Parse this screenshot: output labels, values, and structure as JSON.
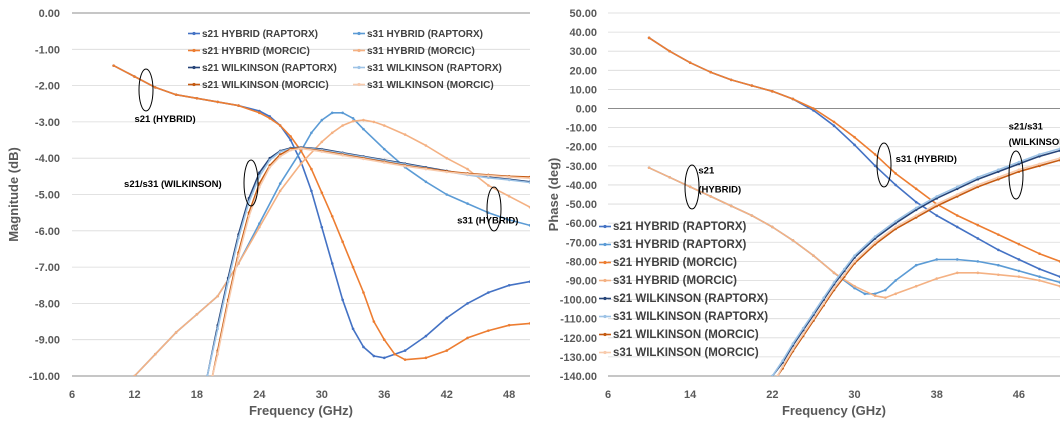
{
  "chart_data": [
    {
      "type": "line",
      "title": "",
      "xlabel": "Frequency (GHz)",
      "ylabel": "Magnitude (dB)",
      "xlim": [
        6,
        50
      ],
      "ylim": [
        -10,
        0
      ],
      "xticks": [
        6,
        12,
        18,
        24,
        30,
        36,
        42,
        48
      ],
      "yticks": [
        "0.00",
        "-1.00",
        "-2.00",
        "-3.00",
        "-4.00",
        "-5.00",
        "-6.00",
        "-7.00",
        "-8.00",
        "-9.00",
        "-10.00"
      ],
      "grid": "horizontal",
      "legend_position": "top-right",
      "series": [
        {
          "name": "s21 HYBRID (RAPTORX)",
          "color": "#4472C4",
          "x": [
            10,
            12,
            14,
            16,
            18,
            20,
            22,
            24,
            25,
            26,
            27,
            28,
            29,
            30,
            31,
            32,
            33,
            34,
            35,
            36,
            38,
            40,
            42,
            44,
            46,
            48,
            50
          ],
          "y": [
            -1.45,
            -1.75,
            -2.05,
            -2.25,
            -2.35,
            -2.45,
            -2.55,
            -2.7,
            -2.85,
            -3.1,
            -3.5,
            -4.1,
            -4.9,
            -5.9,
            -6.9,
            -7.9,
            -8.7,
            -9.2,
            -9.45,
            -9.5,
            -9.3,
            -8.9,
            -8.4,
            -8.0,
            -7.7,
            -7.5,
            -7.4
          ]
        },
        {
          "name": "s31 HYBRID (RAPTORX)",
          "color": "#5B9BD5",
          "x": [
            12,
            14,
            16,
            18,
            20,
            22,
            24,
            26,
            28,
            29,
            30,
            31,
            32,
            33,
            34,
            36,
            38,
            40,
            42,
            44,
            46,
            48,
            50
          ],
          "y": [
            -10.0,
            -9.4,
            -8.8,
            -8.3,
            -7.8,
            -6.9,
            -5.8,
            -4.7,
            -3.8,
            -3.3,
            -2.95,
            -2.75,
            -2.75,
            -2.9,
            -3.2,
            -3.75,
            -4.25,
            -4.65,
            -5.0,
            -5.25,
            -5.5,
            -5.7,
            -5.85
          ]
        },
        {
          "name": "s21 HYBRID (MORCIC)",
          "color": "#ED7D31",
          "x": [
            10,
            12,
            14,
            16,
            18,
            20,
            22,
            24,
            25,
            26,
            27,
            28,
            29,
            30,
            31,
            32,
            33,
            34,
            35,
            36,
            37,
            38,
            40,
            42,
            44,
            46,
            48,
            50
          ],
          "y": [
            -1.45,
            -1.75,
            -2.05,
            -2.25,
            -2.35,
            -2.45,
            -2.55,
            -2.75,
            -2.9,
            -3.1,
            -3.4,
            -3.8,
            -4.3,
            -4.95,
            -5.6,
            -6.3,
            -7.0,
            -7.7,
            -8.5,
            -9.0,
            -9.4,
            -9.55,
            -9.5,
            -9.3,
            -8.95,
            -8.75,
            -8.6,
            -8.55
          ]
        },
        {
          "name": "s31 HYBRID (MORCIC)",
          "color": "#F4B183",
          "x": [
            12,
            14,
            16,
            18,
            20,
            22,
            24,
            26,
            28,
            30,
            31,
            32,
            33,
            34,
            35,
            36,
            38,
            40,
            42,
            44,
            46,
            48,
            50
          ],
          "y": [
            -10.0,
            -9.4,
            -8.8,
            -8.3,
            -7.8,
            -6.9,
            -5.9,
            -4.9,
            -4.15,
            -3.55,
            -3.3,
            -3.1,
            -2.98,
            -2.95,
            -3.0,
            -3.1,
            -3.35,
            -3.65,
            -4.0,
            -4.3,
            -4.75,
            -5.05,
            -5.35
          ]
        },
        {
          "name": "s21 WILKINSON (RAPTORX)",
          "color": "#264478",
          "x": [
            19,
            20,
            21,
            22,
            23,
            24,
            25,
            26,
            27,
            28,
            30,
            32,
            34,
            36,
            38,
            40,
            42,
            44,
            46,
            48,
            50
          ],
          "y": [
            -10.0,
            -8.6,
            -7.3,
            -6.1,
            -5.1,
            -4.4,
            -4.0,
            -3.8,
            -3.72,
            -3.7,
            -3.75,
            -3.85,
            -3.95,
            -4.05,
            -4.15,
            -4.25,
            -4.35,
            -4.45,
            -4.52,
            -4.58,
            -4.65
          ]
        },
        {
          "name": "s31 WILKINSON (RAPTORX)",
          "color": "#9DC3E6",
          "x": [
            19,
            20,
            21,
            22,
            23,
            24,
            25,
            26,
            27,
            28,
            30,
            32,
            34,
            36,
            38,
            40,
            42,
            44,
            46,
            48,
            50
          ],
          "y": [
            -10.0,
            -8.7,
            -7.4,
            -6.2,
            -5.2,
            -4.5,
            -4.05,
            -3.82,
            -3.74,
            -3.71,
            -3.77,
            -3.87,
            -3.97,
            -4.07,
            -4.17,
            -4.27,
            -4.37,
            -4.46,
            -4.54,
            -4.6,
            -4.67
          ]
        },
        {
          "name": "s21 WILKINSON (MORCIC)",
          "color": "#C55A11",
          "x": [
            19.5,
            20,
            21,
            22,
            23,
            24,
            25,
            26,
            27,
            28,
            30,
            32,
            34,
            36,
            38,
            40,
            42,
            44,
            46,
            48,
            50
          ],
          "y": [
            -10.0,
            -9.3,
            -7.9,
            -6.6,
            -5.5,
            -4.7,
            -4.2,
            -3.9,
            -3.75,
            -3.72,
            -3.8,
            -3.9,
            -4.0,
            -4.1,
            -4.2,
            -4.28,
            -4.36,
            -4.42,
            -4.46,
            -4.5,
            -4.52
          ]
        },
        {
          "name": "s31 WILKINSON (MORCIC)",
          "color": "#F8CBAD",
          "x": [
            19.5,
            20,
            21,
            22,
            23,
            24,
            25,
            26,
            27,
            28,
            30,
            32,
            34,
            36,
            38,
            40,
            42,
            44,
            46,
            48,
            50
          ],
          "y": [
            -10.0,
            -9.4,
            -8.0,
            -6.7,
            -5.6,
            -4.8,
            -4.25,
            -3.95,
            -3.78,
            -3.73,
            -3.82,
            -3.92,
            -4.02,
            -4.12,
            -4.22,
            -4.3,
            -4.38,
            -4.44,
            -4.48,
            -4.52,
            -4.55
          ]
        }
      ],
      "annotations": [
        {
          "text": "s21 (HYBRID)",
          "x": 12,
          "y": -3.0
        },
        {
          "text": "s21/s31 (WILKINSON)",
          "x": 11,
          "y": -4.8
        },
        {
          "text": "s31 (HYBRID)",
          "x": 43,
          "y": -5.8
        }
      ]
    },
    {
      "type": "line",
      "title": "",
      "xlabel": "Frequency (GHz)",
      "ylabel": "Phase (deg)",
      "xlim": [
        6,
        50
      ],
      "ylim": [
        -140,
        50
      ],
      "xticks": [
        6,
        14,
        22,
        30,
        38,
        46
      ],
      "yticks": [
        "50.00",
        "40.00",
        "30.00",
        "20.00",
        "10.00",
        "0.00",
        "-10.00",
        "-20.00",
        "-30.00",
        "-40.00",
        "-50.00",
        "-60.00",
        "-70.00",
        "-80.00",
        "-90.00",
        "-100.00",
        "-110.00",
        "-120.00",
        "-130.00",
        "-140.00"
      ],
      "grid": "horizontal",
      "legend_position": "bottom-left",
      "series": [
        {
          "name": "s21 HYBRID (RAPTORX)",
          "color": "#4472C4",
          "x": [
            10,
            12,
            14,
            16,
            18,
            20,
            22,
            24,
            26,
            28,
            30,
            32,
            34,
            36,
            38,
            40,
            42,
            44,
            46,
            48,
            50
          ],
          "y": [
            37,
            30,
            24,
            19,
            15,
            12,
            9,
            5,
            -1,
            -9,
            -19,
            -30,
            -40,
            -49,
            -56,
            -62,
            -68,
            -74,
            -79,
            -84,
            -88
          ]
        },
        {
          "name": "s31 HYBRID (RAPTORX)",
          "color": "#5B9BD5",
          "x": [
            10,
            12,
            14,
            16,
            18,
            20,
            22,
            24,
            26,
            28,
            30,
            31,
            32,
            33,
            34,
            36,
            38,
            40,
            42,
            44,
            46,
            48,
            50
          ],
          "y": [
            -31,
            -36,
            -41,
            -46,
            -51,
            -56,
            -62,
            -69,
            -77,
            -86,
            -94,
            -97,
            -97,
            -95,
            -90,
            -82,
            -79,
            -79,
            -80,
            -82,
            -85,
            -88,
            -91
          ]
        },
        {
          "name": "s21 HYBRID (MORCIC)",
          "color": "#ED7D31",
          "x": [
            10,
            12,
            14,
            16,
            18,
            20,
            22,
            24,
            26,
            28,
            30,
            32,
            34,
            36,
            38,
            40,
            42,
            44,
            46,
            48,
            50
          ],
          "y": [
            37,
            30,
            24,
            19,
            15,
            12,
            9,
            5,
            0,
            -7,
            -15,
            -24,
            -34,
            -42,
            -50,
            -56,
            -61,
            -66,
            -71,
            -76,
            -80
          ]
        },
        {
          "name": "s31 HYBRID (MORCIC)",
          "color": "#F4B183",
          "x": [
            10,
            12,
            14,
            16,
            18,
            20,
            22,
            24,
            26,
            28,
            30,
            32,
            33,
            34,
            36,
            38,
            40,
            42,
            44,
            46,
            48,
            50
          ],
          "y": [
            -31,
            -36,
            -41,
            -46,
            -51,
            -56,
            -62,
            -69,
            -77,
            -86,
            -93,
            -98,
            -99,
            -97,
            -93,
            -89,
            -86,
            -86,
            -87,
            -88,
            -90,
            -93
          ]
        },
        {
          "name": "s21 WILKINSON (RAPTORX)",
          "color": "#264478",
          "x": [
            22,
            23,
            24,
            25,
            26,
            27,
            28,
            29,
            30,
            32,
            34,
            36,
            38,
            40,
            42,
            44,
            46,
            48,
            50
          ],
          "y": [
            -140,
            -133,
            -124,
            -116,
            -108,
            -100,
            -92,
            -85,
            -78,
            -68,
            -60,
            -53,
            -47,
            -42,
            -37,
            -33,
            -29,
            -25,
            -22
          ]
        },
        {
          "name": "s31 WILKINSON (RAPTORX)",
          "color": "#9DC3E6",
          "x": [
            22,
            23,
            24,
            25,
            26,
            27,
            28,
            29,
            30,
            32,
            34,
            36,
            38,
            40,
            42,
            44,
            46,
            48,
            50
          ],
          "y": [
            -140,
            -132,
            -123,
            -115,
            -107,
            -99,
            -91,
            -84,
            -77,
            -67,
            -59,
            -52,
            -46,
            -41,
            -36,
            -32,
            -28,
            -24,
            -21
          ]
        },
        {
          "name": "s21 WILKINSON (MORCIC)",
          "color": "#C55A11",
          "x": [
            22.5,
            23,
            24,
            25,
            26,
            27,
            28,
            29,
            30,
            32,
            34,
            36,
            38,
            40,
            42,
            44,
            46,
            48,
            50
          ],
          "y": [
            -140,
            -136,
            -127,
            -119,
            -111,
            -103,
            -95,
            -88,
            -81,
            -71,
            -63,
            -57,
            -51,
            -46,
            -41,
            -37,
            -33,
            -30,
            -27
          ]
        },
        {
          "name": "s31 WILKINSON (MORCIC)",
          "color": "#F8CBAD",
          "x": [
            22.5,
            23,
            24,
            25,
            26,
            27,
            28,
            29,
            30,
            32,
            34,
            36,
            38,
            40,
            42,
            44,
            46,
            48,
            50
          ],
          "y": [
            -140,
            -135,
            -126,
            -118,
            -110,
            -102,
            -94,
            -87,
            -80,
            -70,
            -62,
            -56,
            -50,
            -45,
            -40,
            -36,
            -32,
            -29,
            -26
          ]
        }
      ],
      "annotations": [
        {
          "text": "s21",
          "x": 14.8,
          "y": -34
        },
        {
          "text": "(HYBRID)",
          "x": 14.8,
          "y": -44
        },
        {
          "text": "s31 (HYBRID)",
          "x": 34,
          "y": -28
        },
        {
          "text": "s21/s31",
          "x": 45,
          "y": -11
        },
        {
          "text": "(WILKINSON)",
          "x": 45,
          "y": -19
        }
      ]
    }
  ]
}
